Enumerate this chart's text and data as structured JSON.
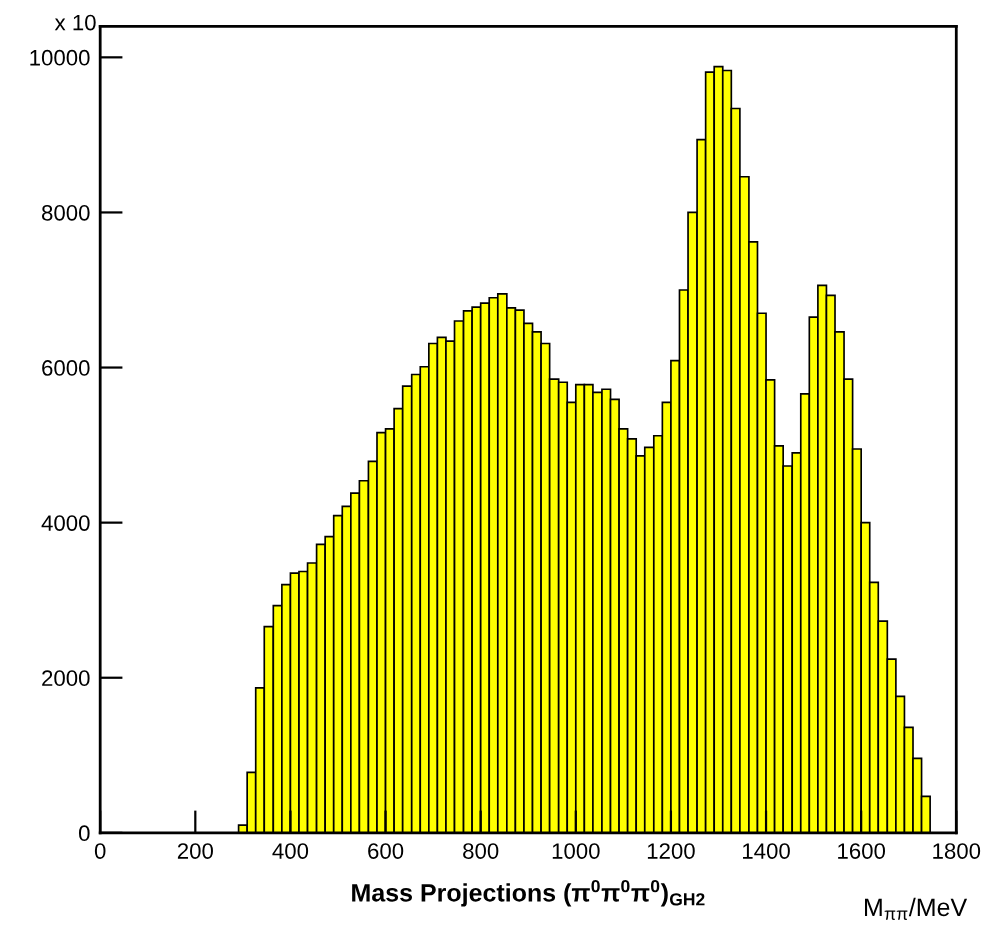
{
  "chart_data": {
    "type": "histogram",
    "xlabel": "Mass Projections (π$^{0}$π$^{0}$π$^{0}$)$_{GH2}$",
    "annotations": [
      "x 10",
      "M$_{ππ}$/MeV"
    ],
    "bins": [
      291,
      309,
      327,
      345,
      364,
      382,
      400,
      418,
      436,
      455,
      473,
      491,
      509,
      527,
      545,
      564,
      582,
      600,
      618,
      636,
      655,
      673,
      691,
      709,
      727,
      745,
      764,
      782,
      800,
      818,
      836,
      855,
      873,
      891,
      909,
      927,
      945,
      964,
      982,
      1000,
      1018,
      1036,
      1055,
      1073,
      1091,
      1109,
      1127,
      1145,
      1164,
      1182,
      1200,
      1218,
      1236,
      1255,
      1273,
      1291,
      1309,
      1327,
      1345,
      1364,
      1382,
      1400,
      1418,
      1436,
      1455,
      1473,
      1491,
      1509,
      1527,
      1545,
      1564,
      1582,
      1600,
      1618,
      1636,
      1655,
      1673,
      1691,
      1709,
      1727,
      1745
    ],
    "values": [
      100,
      780,
      1870,
      2660,
      2930,
      3200,
      3350,
      3370,
      3480,
      3720,
      3820,
      4090,
      4210,
      4380,
      4540,
      4790,
      5160,
      5210,
      5470,
      5760,
      5910,
      6010,
      6310,
      6390,
      6340,
      6600,
      6730,
      6780,
      6830,
      6900,
      6950,
      6770,
      6740,
      6570,
      6460,
      6310,
      5850,
      5810,
      5550,
      5780,
      5780,
      5680,
      5720,
      5590,
      5210,
      5080,
      4860,
      4970,
      5120,
      5550,
      6090,
      7000,
      8000,
      8940,
      9810,
      9880,
      9830,
      9340,
      8460,
      7620,
      6700,
      5840,
      4990,
      4730,
      4900,
      5660,
      6650,
      7060,
      6930,
      6460,
      5850,
      4950,
      4000,
      3230,
      2730,
      2240,
      1760,
      1360,
      960,
      470
    ],
    "color": "#ffff00",
    "xlim": [
      0,
      1800
    ],
    "ylim": [
      0,
      10400
    ],
    "xticks": [
      0,
      200,
      400,
      600,
      800,
      1000,
      1200,
      1400,
      1600,
      1800
    ],
    "yticks": [
      0,
      2000,
      4000,
      6000,
      8000,
      10000
    ],
    "grid": false,
    "legend": false
  }
}
